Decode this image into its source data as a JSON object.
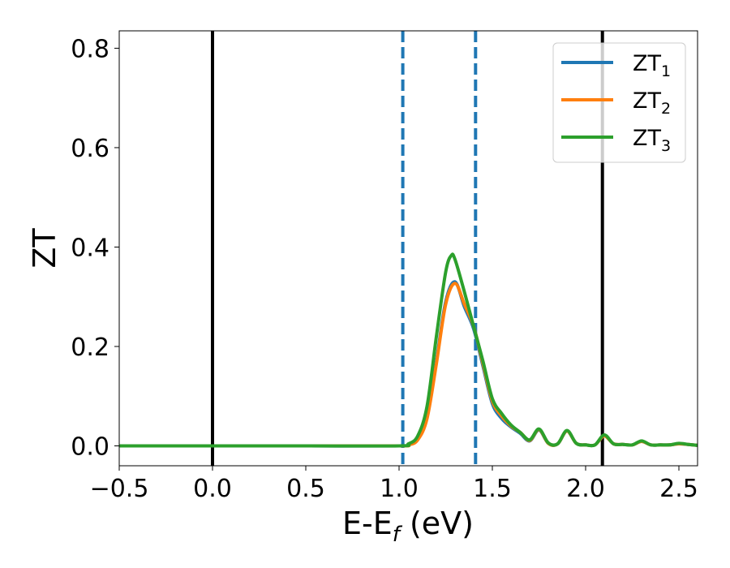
{
  "chart_data": {
    "type": "line",
    "xlabel": {
      "main": "E-E",
      "sub": "f",
      "unit": " (eV)"
    },
    "ylabel": "ZT",
    "xlim": [
      -0.5,
      2.6
    ],
    "ylim": [
      -0.04,
      0.835
    ],
    "xticks": [
      -0.5,
      0.0,
      0.5,
      1.0,
      1.5,
      2.0,
      2.5
    ],
    "xtick_labels": [
      "−0.5",
      "0.0",
      "0.5",
      "1.0",
      "1.5",
      "2.0",
      "2.5"
    ],
    "yticks": [
      0.0,
      0.2,
      0.4,
      0.6,
      0.8
    ],
    "ytick_labels": [
      "0.0",
      "0.2",
      "0.4",
      "0.6",
      "0.8"
    ],
    "grid": false,
    "legend": {
      "placement": "top-right"
    },
    "vlines": [
      {
        "x": 0.0,
        "style": "solid",
        "color": "#000000"
      },
      {
        "x": 2.09,
        "style": "solid",
        "color": "#000000"
      },
      {
        "x": 1.02,
        "style": "dashed",
        "color": "#1f77b4"
      },
      {
        "x": 1.41,
        "style": "dashed",
        "color": "#1f77b4"
      }
    ],
    "series": [
      {
        "name": "ZT",
        "sub": "1",
        "color": "#1f77b4",
        "x": [
          -0.5,
          0.0,
          0.5,
          1.0,
          1.05,
          1.1,
          1.15,
          1.2,
          1.25,
          1.3,
          1.35,
          1.4,
          1.45,
          1.5,
          1.55,
          1.6,
          1.65,
          1.7,
          1.75,
          1.8,
          1.85,
          1.9,
          1.95,
          2.0,
          2.05,
          2.1,
          2.15,
          2.2,
          2.25,
          2.3,
          2.35,
          2.4,
          2.45,
          2.5,
          2.55,
          2.6
        ],
        "y": [
          0.0,
          0.0,
          0.0,
          0.0,
          0.003,
          0.015,
          0.06,
          0.17,
          0.29,
          0.33,
          0.28,
          0.235,
          0.16,
          0.085,
          0.055,
          0.038,
          0.025,
          0.01,
          0.032,
          0.005,
          0.004,
          0.03,
          0.005,
          0.002,
          0.002,
          0.02,
          0.004,
          0.003,
          0.002,
          0.009,
          0.002,
          0.002,
          0.002,
          0.004,
          0.003,
          0.001
        ]
      },
      {
        "name": "ZT",
        "sub": "2",
        "color": "#ff7f0e",
        "x": [
          -0.5,
          0.0,
          0.5,
          1.0,
          1.05,
          1.1,
          1.15,
          1.2,
          1.25,
          1.3,
          1.35,
          1.4,
          1.45,
          1.5,
          1.55,
          1.6,
          1.65,
          1.7,
          1.75,
          1.8,
          1.85,
          1.9,
          1.95,
          2.0,
          2.05,
          2.1,
          2.15,
          2.2,
          2.25,
          2.3,
          2.35,
          2.4,
          2.45,
          2.5,
          2.55,
          2.6
        ],
        "y": [
          0.0,
          0.0,
          0.0,
          0.0,
          0.002,
          0.012,
          0.055,
          0.165,
          0.285,
          0.327,
          0.285,
          0.24,
          0.165,
          0.09,
          0.06,
          0.04,
          0.027,
          0.011,
          0.033,
          0.005,
          0.004,
          0.03,
          0.005,
          0.002,
          0.002,
          0.02,
          0.004,
          0.003,
          0.002,
          0.009,
          0.002,
          0.002,
          0.002,
          0.004,
          0.003,
          0.001
        ]
      },
      {
        "name": "ZT",
        "sub": "3",
        "color": "#2ca02c",
        "x": [
          -0.5,
          0.0,
          0.5,
          1.0,
          1.05,
          1.1,
          1.15,
          1.2,
          1.25,
          1.28,
          1.3,
          1.35,
          1.4,
          1.45,
          1.5,
          1.55,
          1.6,
          1.65,
          1.7,
          1.75,
          1.8,
          1.85,
          1.9,
          1.95,
          2.0,
          2.05,
          2.1,
          2.15,
          2.2,
          2.25,
          2.3,
          2.35,
          2.4,
          2.45,
          2.5,
          2.55,
          2.6
        ],
        "y": [
          0.0,
          0.0,
          0.0,
          0.0,
          0.004,
          0.02,
          0.08,
          0.22,
          0.35,
          0.383,
          0.375,
          0.31,
          0.24,
          0.17,
          0.095,
          0.065,
          0.042,
          0.027,
          0.012,
          0.034,
          0.006,
          0.004,
          0.031,
          0.005,
          0.002,
          0.002,
          0.022,
          0.004,
          0.003,
          0.002,
          0.01,
          0.002,
          0.002,
          0.002,
          0.005,
          0.003,
          0.001
        ]
      }
    ]
  }
}
